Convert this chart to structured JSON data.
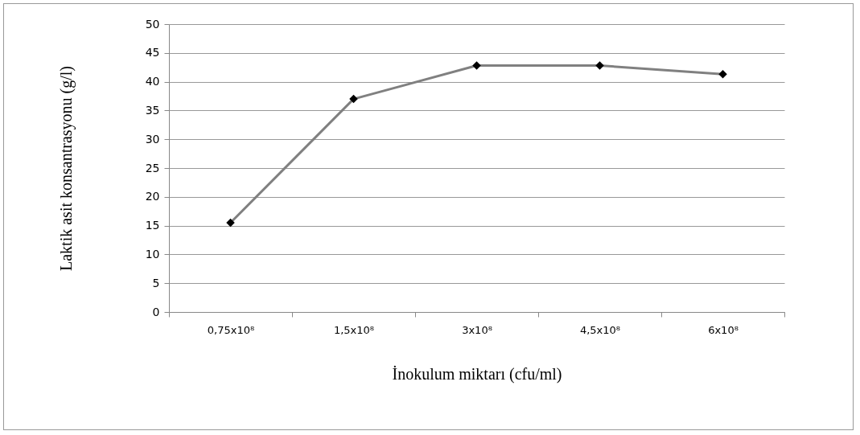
{
  "chart_data": {
    "type": "line",
    "xlabel": "İnokulum miktarı (cfu/ml)",
    "ylabel": "Laktik asit konsantrasyonu (g/l)",
    "categories": [
      "0,75x10⁸",
      "1,5x10⁸",
      "3x10⁸",
      "4,5x10⁸",
      "6x10⁸"
    ],
    "series": [
      {
        "color": "#808080",
        "values": [
          15.5,
          37,
          42.8,
          42.8,
          41.3
        ]
      }
    ],
    "ylim": [
      0,
      50
    ],
    "yticks": [
      0,
      5,
      10,
      15,
      20,
      25,
      30,
      35,
      40,
      45,
      50
    ],
    "grid": "y",
    "marker": "diamond",
    "line_style": "solid",
    "legend": false
  }
}
